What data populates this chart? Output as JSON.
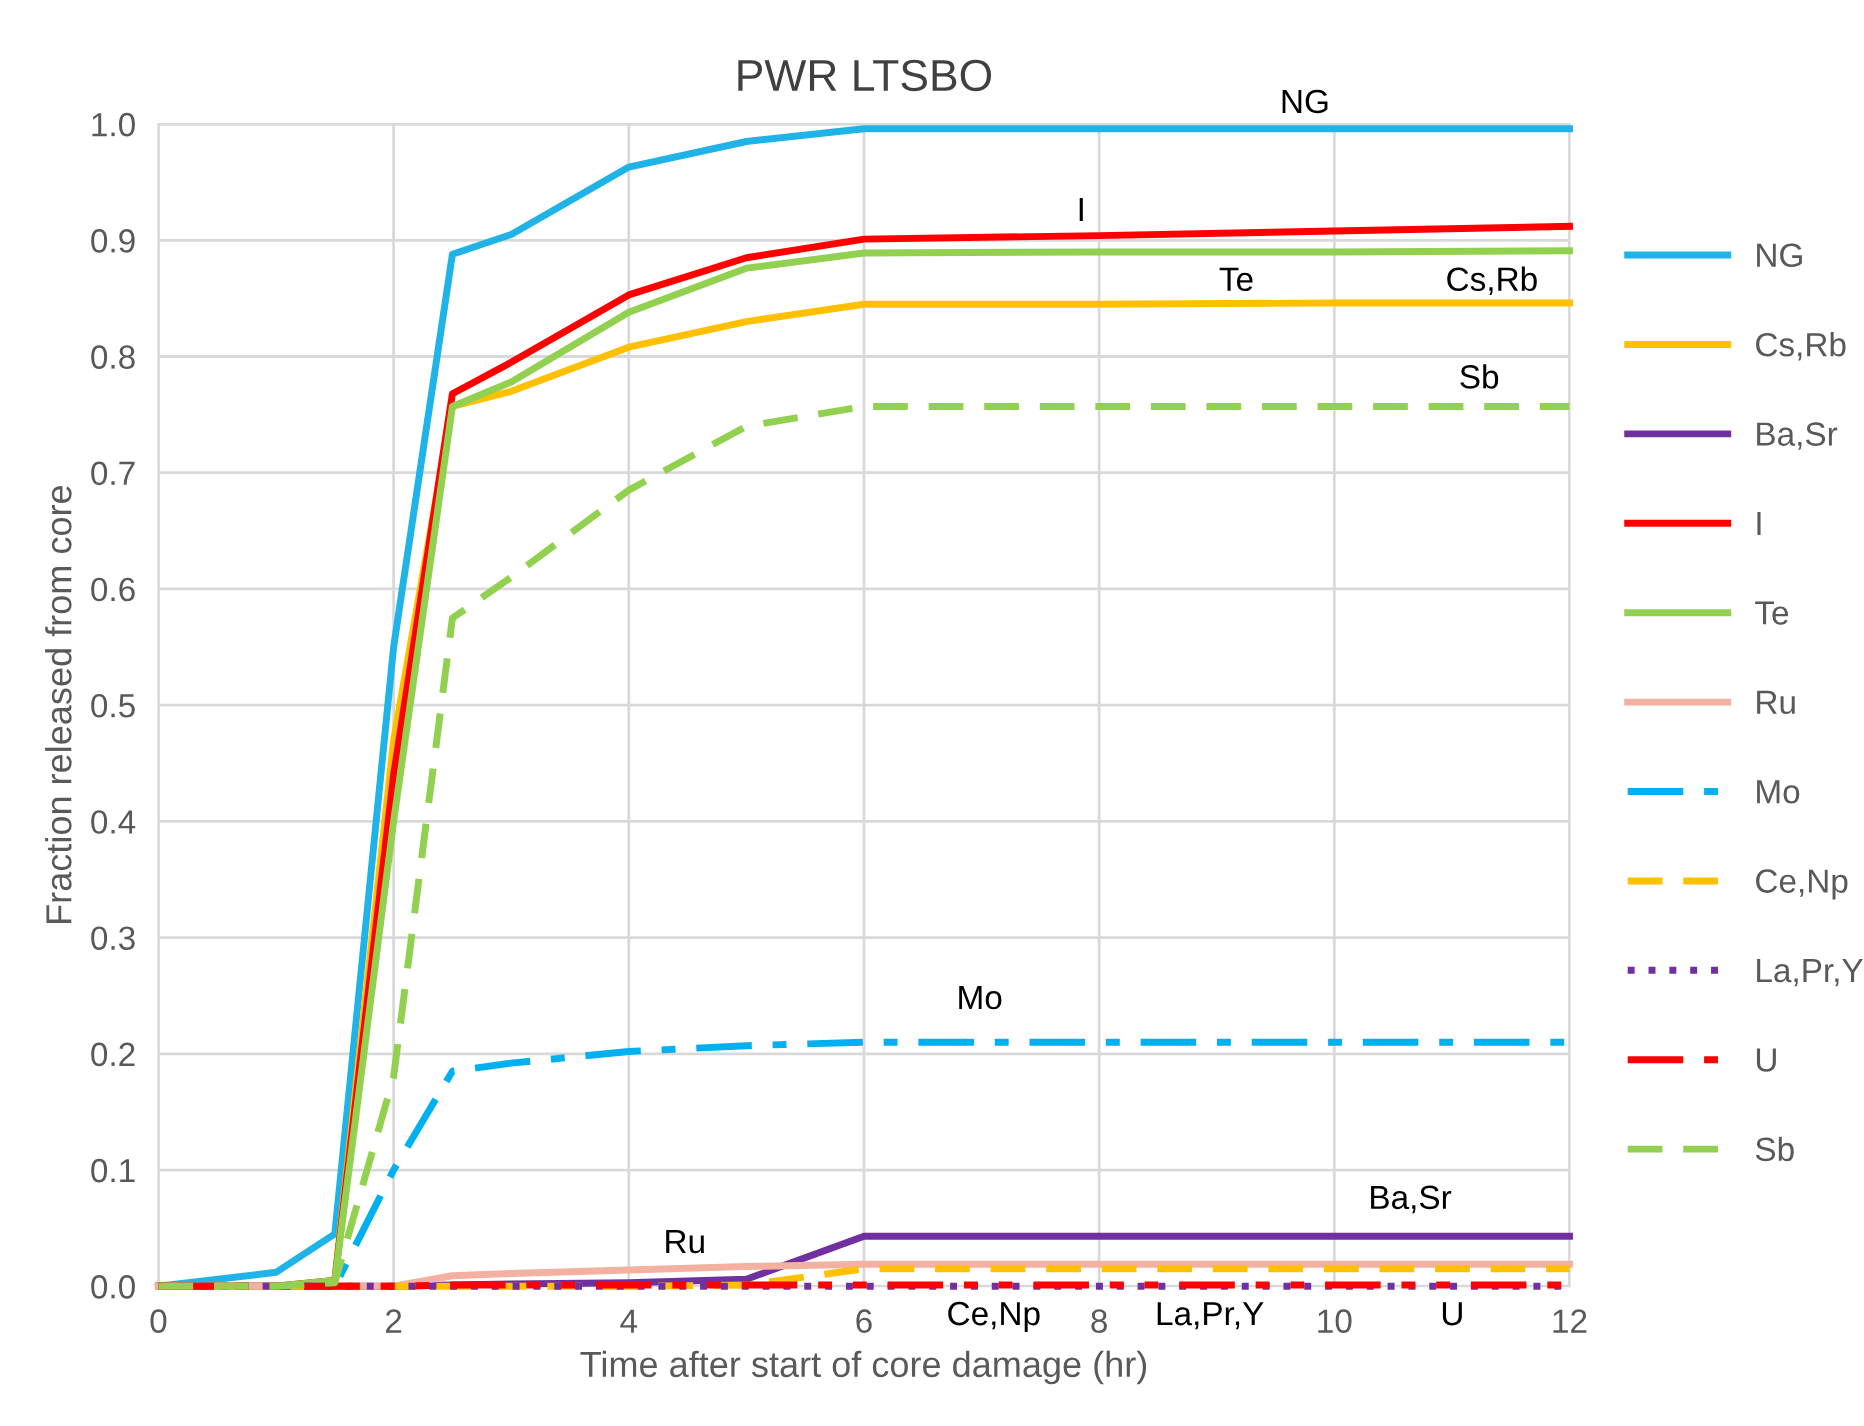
{
  "chart_data": {
    "type": "line",
    "title": "PWR LTSBO",
    "xlabel": "Time after start of core damage (hr)",
    "ylabel": "Fraction released from core",
    "x": [
      0,
      1,
      1.5,
      2,
      2.5,
      3,
      4,
      5,
      6,
      8,
      10,
      12
    ],
    "xlim": [
      0,
      12
    ],
    "xticks": [
      0,
      2,
      4,
      6,
      8,
      10,
      12
    ],
    "ylim": [
      0,
      1.0
    ],
    "yticks": [
      {
        "value": 0,
        "label": "0.0"
      },
      0.1,
      0.2,
      0.3,
      0.4,
      0.5,
      0.6,
      0.7,
      0.8,
      0.9,
      {
        "value": 1.0,
        "label": "1.0"
      }
    ],
    "grid": true,
    "legend": "right",
    "marker": "none",
    "series": [
      {
        "name": "NG",
        "color": "#1fb3e8",
        "line_style": "solid",
        "values": [
          0,
          0.012,
          0.045,
          0.55,
          0.888,
          0.905,
          0.963,
          0.985,
          0.996,
          0.996,
          0.996,
          0.996
        ]
      },
      {
        "name": "Cs,Rb",
        "color": "#ffc000",
        "line_style": "solid",
        "values": [
          0,
          0,
          0.005,
          0.47,
          0.757,
          0.77,
          0.808,
          0.83,
          0.845,
          0.845,
          0.846,
          0.846
        ]
      },
      {
        "name": "Ba,Sr",
        "color": "#7030a0",
        "line_style": "solid",
        "values": [
          0,
          0,
          0,
          0,
          0.001,
          0.002,
          0.003,
          0.006,
          0.043,
          0.043,
          0.043,
          0.043
        ]
      },
      {
        "name": "I",
        "color": "#ff0000",
        "line_style": "solid",
        "values": [
          0,
          0,
          0.005,
          0.44,
          0.768,
          0.795,
          0.853,
          0.885,
          0.901,
          0.904,
          0.908,
          0.912
        ]
      },
      {
        "name": "Te",
        "color": "#92d050",
        "line_style": "solid",
        "values": [
          0,
          0,
          0.005,
          0.4,
          0.757,
          0.778,
          0.838,
          0.876,
          0.889,
          0.89,
          0.89,
          0.891
        ]
      },
      {
        "name": "Ru",
        "color": "#f4b0a0",
        "line_style": "solid",
        "values": [
          0,
          0,
          0,
          0,
          0.009,
          0.011,
          0.014,
          0.017,
          0.019,
          0.019,
          0.019,
          0.019
        ]
      },
      {
        "name": "Mo",
        "color": "#00b0f0",
        "line_style": "dashdot",
        "values": [
          0,
          0,
          0,
          0.1,
          0.185,
          0.192,
          0.202,
          0.207,
          0.21,
          0.21,
          0.21,
          0.21
        ]
      },
      {
        "name": "Ce,Np",
        "color": "#ffc000",
        "line_style": "dashed",
        "values": [
          0,
          0,
          0,
          0,
          0,
          0,
          0,
          0.001,
          0.015,
          0.015,
          0.015,
          0.015
        ]
      },
      {
        "name": "La,Pr,Y",
        "color": "#7030a0",
        "line_style": "dotted",
        "values": [
          0,
          0,
          0,
          0,
          0,
          0,
          0,
          0,
          0,
          0,
          0,
          0
        ]
      },
      {
        "name": "U",
        "color": "#ff0000",
        "line_style": "dashdotdot",
        "values": [
          0,
          0,
          0,
          0,
          0.001,
          0.001,
          0.001,
          0.001,
          0.001,
          0.001,
          0.001,
          0.001
        ]
      },
      {
        "name": "Sb",
        "color": "#92d050",
        "line_style": "dashed",
        "values": [
          0,
          0,
          0.003,
          0.18,
          0.575,
          0.61,
          0.685,
          0.74,
          0.757,
          0.757,
          0.757,
          0.757
        ]
      }
    ],
    "annotations": [
      "NG",
      "I",
      "Te",
      "Cs,Rb",
      "Sb",
      "Mo",
      "Ba,Sr",
      "Ru",
      "Ce,Np",
      "La,Pr,Y",
      "U"
    ]
  }
}
